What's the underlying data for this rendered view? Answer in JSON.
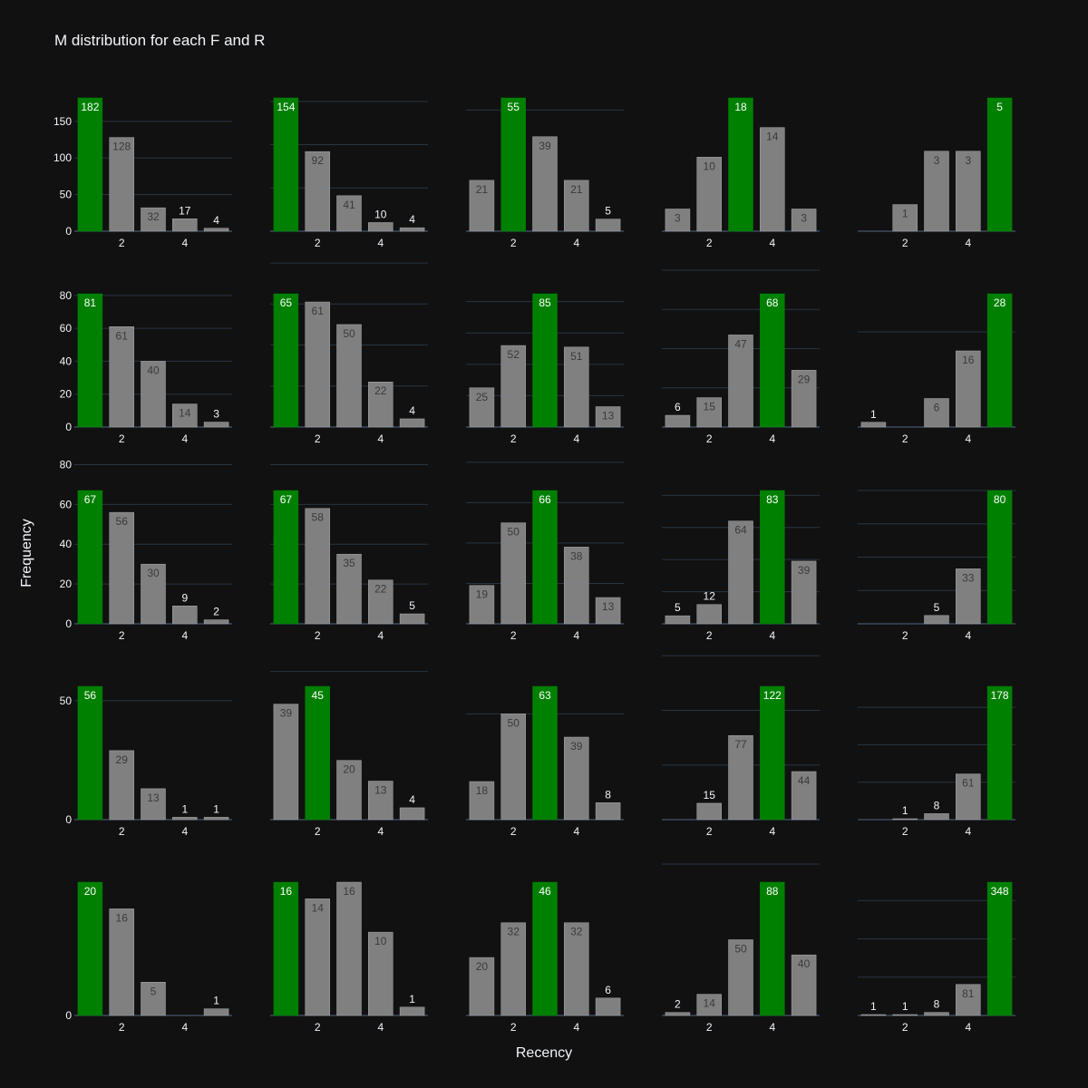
{
  "chart_data": {
    "type": "bar",
    "title": "M distribution for each F and R",
    "xlabel": "Recency",
    "ylabel": "Frequency",
    "x_tick_labels": [
      "2",
      "4"
    ],
    "categories": [
      1,
      2,
      3,
      4,
      5
    ],
    "grid": true,
    "colors": {
      "highlight": "#008000",
      "normal": "#808080",
      "background": "#111111",
      "grid": "#283442",
      "text": "#f2f5fa"
    },
    "rows": [
      {
        "yticks": [
          0,
          50,
          100,
          150
        ],
        "panels": [
          {
            "values": [
              182,
              128,
              32,
              17,
              4
            ],
            "highlight": 0,
            "ylim": [
              0,
              182
            ]
          },
          {
            "values": [
              154,
              92,
              41,
              10,
              4
            ],
            "highlight": 0,
            "ylim": [
              0,
              154
            ]
          },
          {
            "values": [
              21,
              55,
              39,
              21,
              5
            ],
            "highlight": 1,
            "ylim": [
              0,
              55
            ]
          },
          {
            "values": [
              3,
              10,
              18,
              14,
              3
            ],
            "highlight": 2,
            "ylim": [
              0,
              18
            ]
          },
          {
            "values": [
              0,
              1,
              3,
              3,
              5
            ],
            "highlight": 4,
            "ylim": [
              0,
              5
            ]
          }
        ]
      },
      {
        "yticks": [
          0,
          20,
          40,
          60,
          80
        ],
        "panels": [
          {
            "values": [
              81,
              61,
              40,
              14,
              3
            ],
            "highlight": 0,
            "ylim": [
              0,
              81
            ]
          },
          {
            "values": [
              65,
              61,
              50,
              22,
              4
            ],
            "highlight": 0,
            "ylim": [
              0,
              65
            ]
          },
          {
            "values": [
              25,
              52,
              85,
              51,
              13
            ],
            "highlight": 2,
            "ylim": [
              0,
              85
            ]
          },
          {
            "values": [
              6,
              15,
              47,
              68,
              29
            ],
            "highlight": 3,
            "ylim": [
              0,
              68
            ]
          },
          {
            "values": [
              1,
              0,
              6,
              16,
              28
            ],
            "highlight": 4,
            "ylim": [
              0,
              28
            ]
          }
        ]
      },
      {
        "yticks": [
          0,
          20,
          40,
          60,
          80
        ],
        "panels": [
          {
            "values": [
              67,
              56,
              30,
              9,
              2
            ],
            "highlight": 0,
            "ylim": [
              0,
              67
            ]
          },
          {
            "values": [
              67,
              58,
              35,
              22,
              5
            ],
            "highlight": 0,
            "ylim": [
              0,
              67
            ]
          },
          {
            "values": [
              19,
              50,
              66,
              38,
              13
            ],
            "highlight": 2,
            "ylim": [
              0,
              66
            ]
          },
          {
            "values": [
              5,
              12,
              64,
              83,
              39
            ],
            "highlight": 3,
            "ylim": [
              0,
              83
            ]
          },
          {
            "values": [
              0,
              0,
              5,
              33,
              80
            ],
            "highlight": 4,
            "ylim": [
              0,
              80
            ]
          }
        ]
      },
      {
        "yticks": [
          0,
          50,
          100,
          150
        ],
        "panels": [
          {
            "values": [
              56,
              29,
              13,
              1,
              1
            ],
            "highlight": 0,
            "ylim": [
              0,
              56
            ]
          },
          {
            "values": [
              39,
              45,
              20,
              13,
              4
            ],
            "highlight": 1,
            "ylim": [
              0,
              45
            ]
          },
          {
            "values": [
              18,
              50,
              63,
              39,
              8
            ],
            "highlight": 2,
            "ylim": [
              0,
              63
            ]
          },
          {
            "values": [
              0,
              15,
              77,
              122,
              44
            ],
            "highlight": 3,
            "ylim": [
              0,
              122
            ]
          },
          {
            "values": [
              0,
              1,
              8,
              61,
              178
            ],
            "highlight": 4,
            "ylim": [
              0,
              178
            ]
          }
        ]
      },
      {
        "yticks": [
          0,
          100,
          200,
          300
        ],
        "panels": [
          {
            "values": [
              20,
              16,
              5,
              0,
              1
            ],
            "highlight": 0,
            "ylim": [
              0,
              20
            ]
          },
          {
            "values": [
              16,
              14,
              16,
              10,
              1
            ],
            "highlight": 0,
            "ylim": [
              0,
              16
            ]
          },
          {
            "values": [
              20,
              32,
              46,
              32,
              6
            ],
            "highlight": 2,
            "ylim": [
              0,
              46
            ]
          },
          {
            "values": [
              2,
              14,
              50,
              88,
              40
            ],
            "highlight": 3,
            "ylim": [
              0,
              88
            ]
          },
          {
            "values": [
              1,
              1,
              8,
              81,
              348
            ],
            "highlight": 4,
            "ylim": [
              0,
              348
            ]
          }
        ]
      }
    ]
  }
}
